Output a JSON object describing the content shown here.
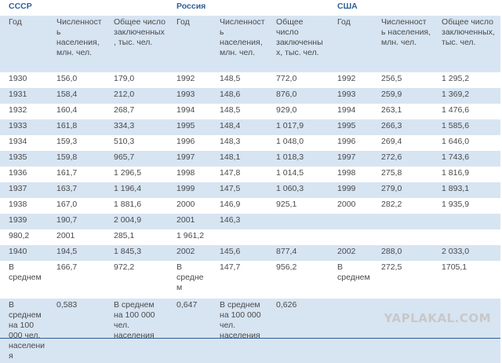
{
  "countries": {
    "ussr": "СССР",
    "russia": "Россия",
    "usa": "США"
  },
  "headers": {
    "year": "Год",
    "population": "Численность населения, млн. чел.",
    "prisoners": "Общее число заключенных, тыс. чел."
  },
  "rows": [
    [
      "1930",
      "156,0",
      "179,0",
      "1992",
      "148,5",
      "772,0",
      "1992",
      "256,5",
      "1 295,2"
    ],
    [
      "1931",
      "158,4",
      "212,0",
      "1993",
      "148,6",
      "876,0",
      "1993",
      "259,9",
      "1 369,2"
    ],
    [
      "1932",
      "160,4",
      "268,7",
      "1994",
      "148,5",
      "929,0",
      "1994",
      "263,1",
      "1 476,6"
    ],
    [
      "1933",
      "161,8",
      "334,3",
      "1995",
      "148,4",
      "1 017,9",
      "1995",
      "266,3",
      "1 585,6"
    ],
    [
      "1934",
      "159,3",
      "510,3",
      "1996",
      "148,3",
      "1 048,0",
      "1996",
      "269,4",
      "1 646,0"
    ],
    [
      "1935",
      "159,8",
      "965,7",
      "1997",
      "148,1",
      "1 018,3",
      "1997",
      "272,6",
      "1 743,6"
    ],
    [
      "1936",
      "161,7",
      "1 296,5",
      "1998",
      "147,8",
      "1 014,5",
      "1998",
      "275,8",
      "1 816,9"
    ],
    [
      "1937",
      "163,7",
      "1 196,4",
      "1999",
      "147,5",
      "1 060,3",
      "1999",
      "279,0",
      "1 893,1"
    ],
    [
      "1938",
      "167,0",
      "1 881,6",
      "2000",
      "146,9",
      "925,1",
      "2000",
      "282,2",
      "1 935,9"
    ],
    [
      "1939",
      "190,7",
      "2 004,9",
      "2001",
      "146,3",
      "",
      "",
      "",
      ""
    ],
    [
      "980,2",
      "2001",
      "285,1",
      "1 961,2",
      "",
      "",
      "",
      "",
      ""
    ],
    [
      "1940",
      "194,5",
      "1 845,3",
      "2002",
      "145,6",
      "877,4",
      "2002",
      "288,0",
      "2 033,0"
    ]
  ],
  "average": {
    "label": "В среднем",
    "ussr_pop": "166,7",
    "ussr_pris": "972,2",
    "russia_pop": "147,7",
    "russia_pris": "956,2",
    "usa_pop": "272,5",
    "usa_pris": "1705,1"
  },
  "per100k": {
    "label_ussr": "В среднем на 100 000 чел. населения",
    "value_ussr": "0,583",
    "label_russia": "В среднем на 100 000 чел. населения",
    "value_russia": "0,647",
    "label_usa": "В среднем на 100 000 чел. населения",
    "value_usa": "0,626"
  },
  "watermark": "YAPLAKAL.COM"
}
